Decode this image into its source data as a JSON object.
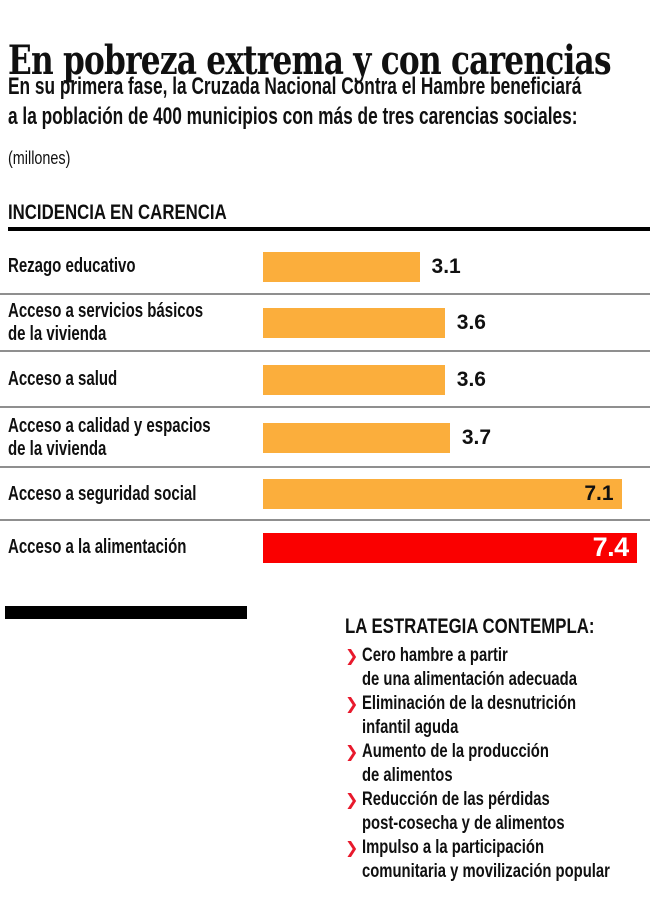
{
  "page": {
    "title": "En pobreza extrema y con carencias",
    "subtitle_line1": "En su primera fase, la Cruzada Nacional Contra el Hambre beneficiará",
    "subtitle_line2": "a la población de 400 municipios con más de tres carencias sociales:",
    "unit_note": "(millones)"
  },
  "section_header": "INCIDENCIA EN CARENCIA",
  "chart_data": {
    "type": "bar",
    "orientation": "horizontal",
    "title": "INCIDENCIA EN CARENCIA",
    "unit_label": "(millones)",
    "categories": [
      "Rezago educativo",
      "Acceso a servicios básicos de la vivienda",
      "Acceso a salud",
      "Acceso a calidad y espacios de la vivienda",
      "Acceso a seguridad social",
      "Acceso a la alimentación"
    ],
    "values": [
      3.1,
      3.6,
      3.6,
      3.7,
      7.1,
      7.4
    ],
    "xlim": [
      0,
      7.4
    ],
    "highlight_index": 5,
    "bar_color": "#FBAE3C",
    "highlight_color": "#FA0000",
    "legend": "none",
    "grid": "off",
    "rows": [
      {
        "line1": "Rezago educativo",
        "line2": "",
        "value": "3.1"
      },
      {
        "line1": "Acceso a servicios básicos",
        "line2": "de la vivienda",
        "value": "3.6"
      },
      {
        "line1": "Acceso a salud",
        "line2": "",
        "value": "3.6"
      },
      {
        "line1": "Acceso a calidad y espacios",
        "line2": "de la vivienda",
        "value": "3.7"
      },
      {
        "line1": "Acceso a seguridad social",
        "line2": "",
        "value": "7.1"
      },
      {
        "line1": "Acceso a la alimentación",
        "line2": "",
        "value": "7.4"
      }
    ]
  },
  "strategy": {
    "heading": "LA ESTRATEGIA CONTEMPLA:",
    "bullet_glyph": "❯",
    "items": [
      {
        "line1": "Cero hambre a partir",
        "line2": "de una alimentación adecuada"
      },
      {
        "line1": "Eliminación de la desnutrición",
        "line2": "infantil aguda"
      },
      {
        "line1": "Aumento de la producción",
        "line2": "de alimentos"
      },
      {
        "line1": "Reducción de las pérdidas",
        "line2": "post-cosecha y de alimentos"
      },
      {
        "line1": "Impulso a la participación",
        "line2": "comunitaria y movilización popular"
      }
    ]
  },
  "colors": {
    "bar_orange": "#FBAE3C",
    "bar_red": "#FA0000",
    "bullet_red": "#E8192C",
    "separator_gray": "#8F8F8F",
    "text_black": "#101010"
  }
}
